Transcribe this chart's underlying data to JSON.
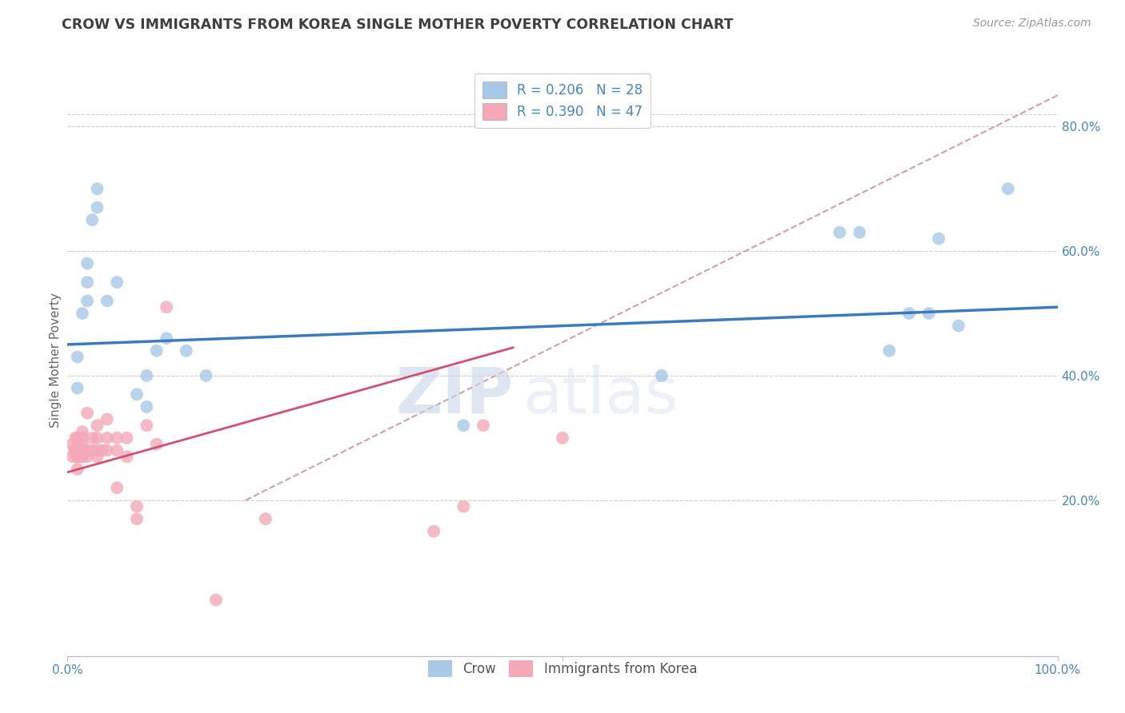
{
  "title": "CROW VS IMMIGRANTS FROM KOREA SINGLE MOTHER POVERTY CORRELATION CHART",
  "source": "Source: ZipAtlas.com",
  "ylabel": "Single Mother Poverty",
  "right_yticks": [
    "20.0%",
    "40.0%",
    "60.0%",
    "80.0%"
  ],
  "right_ytick_vals": [
    0.2,
    0.4,
    0.6,
    0.8
  ],
  "watermark_zip": "ZIP",
  "watermark_atlas": "atlas",
  "legend_label1": "R = 0.206   N = 28",
  "legend_label2": "R = 0.390   N = 47",
  "blue_scatter_color": "#a8c8e8",
  "pink_scatter_color": "#f4a8b8",
  "blue_line_color": "#3a7abf",
  "pink_line_color": "#d45070",
  "dashed_line_color": "#d0a0a8",
  "background_color": "#ffffff",
  "grid_color": "#cccccc",
  "title_color": "#404040",
  "axis_label_color": "#4488bb",
  "crow_x": [
    0.01,
    0.01,
    0.015,
    0.02,
    0.02,
    0.02,
    0.025,
    0.03,
    0.03,
    0.04,
    0.05,
    0.07,
    0.08,
    0.08,
    0.09,
    0.1,
    0.12,
    0.14,
    0.4,
    0.6,
    0.78,
    0.8,
    0.83,
    0.85,
    0.87,
    0.88,
    0.9,
    0.95
  ],
  "crow_y": [
    0.38,
    0.43,
    0.5,
    0.52,
    0.55,
    0.58,
    0.65,
    0.67,
    0.7,
    0.52,
    0.55,
    0.37,
    0.35,
    0.4,
    0.44,
    0.46,
    0.44,
    0.4,
    0.32,
    0.4,
    0.63,
    0.63,
    0.44,
    0.5,
    0.5,
    0.62,
    0.48,
    0.7
  ],
  "korea_x": [
    0.005,
    0.005,
    0.007,
    0.008,
    0.008,
    0.01,
    0.01,
    0.01,
    0.01,
    0.01,
    0.01,
    0.012,
    0.015,
    0.015,
    0.015,
    0.015,
    0.015,
    0.015,
    0.02,
    0.02,
    0.02,
    0.025,
    0.025,
    0.03,
    0.03,
    0.03,
    0.03,
    0.035,
    0.04,
    0.04,
    0.04,
    0.05,
    0.05,
    0.05,
    0.06,
    0.06,
    0.07,
    0.07,
    0.08,
    0.09,
    0.1,
    0.15,
    0.2,
    0.37,
    0.4,
    0.42,
    0.5
  ],
  "korea_y": [
    0.27,
    0.29,
    0.28,
    0.28,
    0.3,
    0.25,
    0.27,
    0.27,
    0.28,
    0.29,
    0.3,
    0.28,
    0.27,
    0.27,
    0.28,
    0.29,
    0.3,
    0.31,
    0.27,
    0.28,
    0.34,
    0.28,
    0.3,
    0.27,
    0.28,
    0.3,
    0.32,
    0.28,
    0.28,
    0.3,
    0.33,
    0.22,
    0.28,
    0.3,
    0.27,
    0.3,
    0.17,
    0.19,
    0.32,
    0.29,
    0.51,
    0.04,
    0.17,
    0.15,
    0.19,
    0.32,
    0.3
  ],
  "xlim": [
    0.0,
    1.0
  ],
  "ylim": [
    -0.05,
    0.9
  ],
  "blue_line_x": [
    0.0,
    1.0
  ],
  "blue_line_y": [
    0.45,
    0.51
  ],
  "pink_line_x": [
    0.0,
    0.45
  ],
  "pink_line_y": [
    0.245,
    0.445
  ],
  "dash_line_x": [
    0.18,
    1.0
  ],
  "dash_line_y": [
    0.2,
    0.85
  ]
}
